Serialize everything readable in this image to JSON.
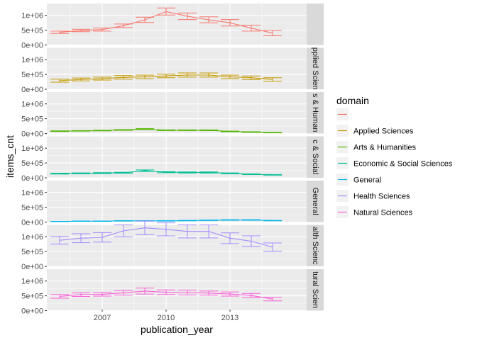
{
  "chart_data": {
    "type": "line",
    "facet_layout": "rows",
    "xlabel": "publication_year",
    "ylabel": "items_cnt",
    "x_ticks": [
      2007,
      2010,
      2013
    ],
    "xlim": [
      2004.4,
      2016.6
    ],
    "y_ticks": [
      0,
      500000,
      1000000
    ],
    "y_tick_labels": [
      "0e+00",
      "5e+05",
      "1e+06"
    ],
    "ylim": [
      0,
      1400000
    ],
    "years": [
      2005,
      2006,
      2007,
      2008,
      2009,
      2010,
      2011,
      2012,
      2013,
      2014,
      2015
    ],
    "grid": true,
    "legend": {
      "title": "domain",
      "position": "right"
    },
    "series": [
      {
        "name": "",
        "strip_label": "",
        "color": "#F8766D",
        "values": [
          430000,
          490000,
          520000,
          650000,
          850000,
          1130000,
          970000,
          850000,
          750000,
          570000,
          400000
        ],
        "err": [
          40000,
          40000,
          50000,
          60000,
          90000,
          120000,
          110000,
          100000,
          110000,
          100000,
          90000
        ]
      },
      {
        "name": "Applied Sciences",
        "strip_label": "pplied Scien",
        "color": "#C49A00",
        "values": [
          290000,
          330000,
          360000,
          400000,
          420000,
          450000,
          480000,
          480000,
          420000,
          390000,
          330000
        ],
        "err": [
          50000,
          50000,
          50000,
          60000,
          60000,
          60000,
          70000,
          70000,
          60000,
          60000,
          60000
        ]
      },
      {
        "name": "Arts & Humanities",
        "strip_label": "s & Human",
        "color": "#53B400",
        "values": [
          80000,
          90000,
          100000,
          120000,
          150000,
          110000,
          110000,
          110000,
          70000,
          50000,
          30000
        ],
        "err": [
          10000,
          10000,
          10000,
          12000,
          15000,
          12000,
          12000,
          12000,
          10000,
          10000,
          8000
        ]
      },
      {
        "name": "Economic & Social Sciences",
        "strip_label": "c & Social",
        "color": "#00C094",
        "values": [
          140000,
          150000,
          160000,
          170000,
          240000,
          190000,
          180000,
          180000,
          150000,
          120000,
          100000
        ],
        "err": [
          15000,
          15000,
          15000,
          15000,
          25000,
          20000,
          18000,
          18000,
          15000,
          12000,
          10000
        ]
      },
      {
        "name": "General",
        "strip_label": "General",
        "color": "#00B6EB",
        "values": [
          20000,
          30000,
          30000,
          40000,
          40000,
          40000,
          50000,
          60000,
          70000,
          70000,
          50000
        ],
        "err": [
          5000,
          5000,
          5000,
          8000,
          8000,
          8000,
          8000,
          10000,
          10000,
          10000,
          8000
        ]
      },
      {
        "name": "Health Sciences",
        "strip_label": "alth Scienc",
        "color": "#A58AFF",
        "values": [
          880000,
          950000,
          980000,
          1200000,
          1300000,
          1250000,
          1180000,
          1180000,
          950000,
          850000,
          650000
        ],
        "err": [
          130000,
          150000,
          160000,
          200000,
          230000,
          220000,
          220000,
          220000,
          180000,
          180000,
          140000
        ]
      },
      {
        "name": "Natural Sciences",
        "strip_label": "tural Scien",
        "color": "#FB61D7",
        "values": [
          480000,
          540000,
          550000,
          600000,
          660000,
          620000,
          610000,
          590000,
          560000,
          510000,
          390000
        ],
        "err": [
          60000,
          60000,
          60000,
          80000,
          100000,
          80000,
          80000,
          70000,
          70000,
          70000,
          60000
        ]
      }
    ]
  }
}
